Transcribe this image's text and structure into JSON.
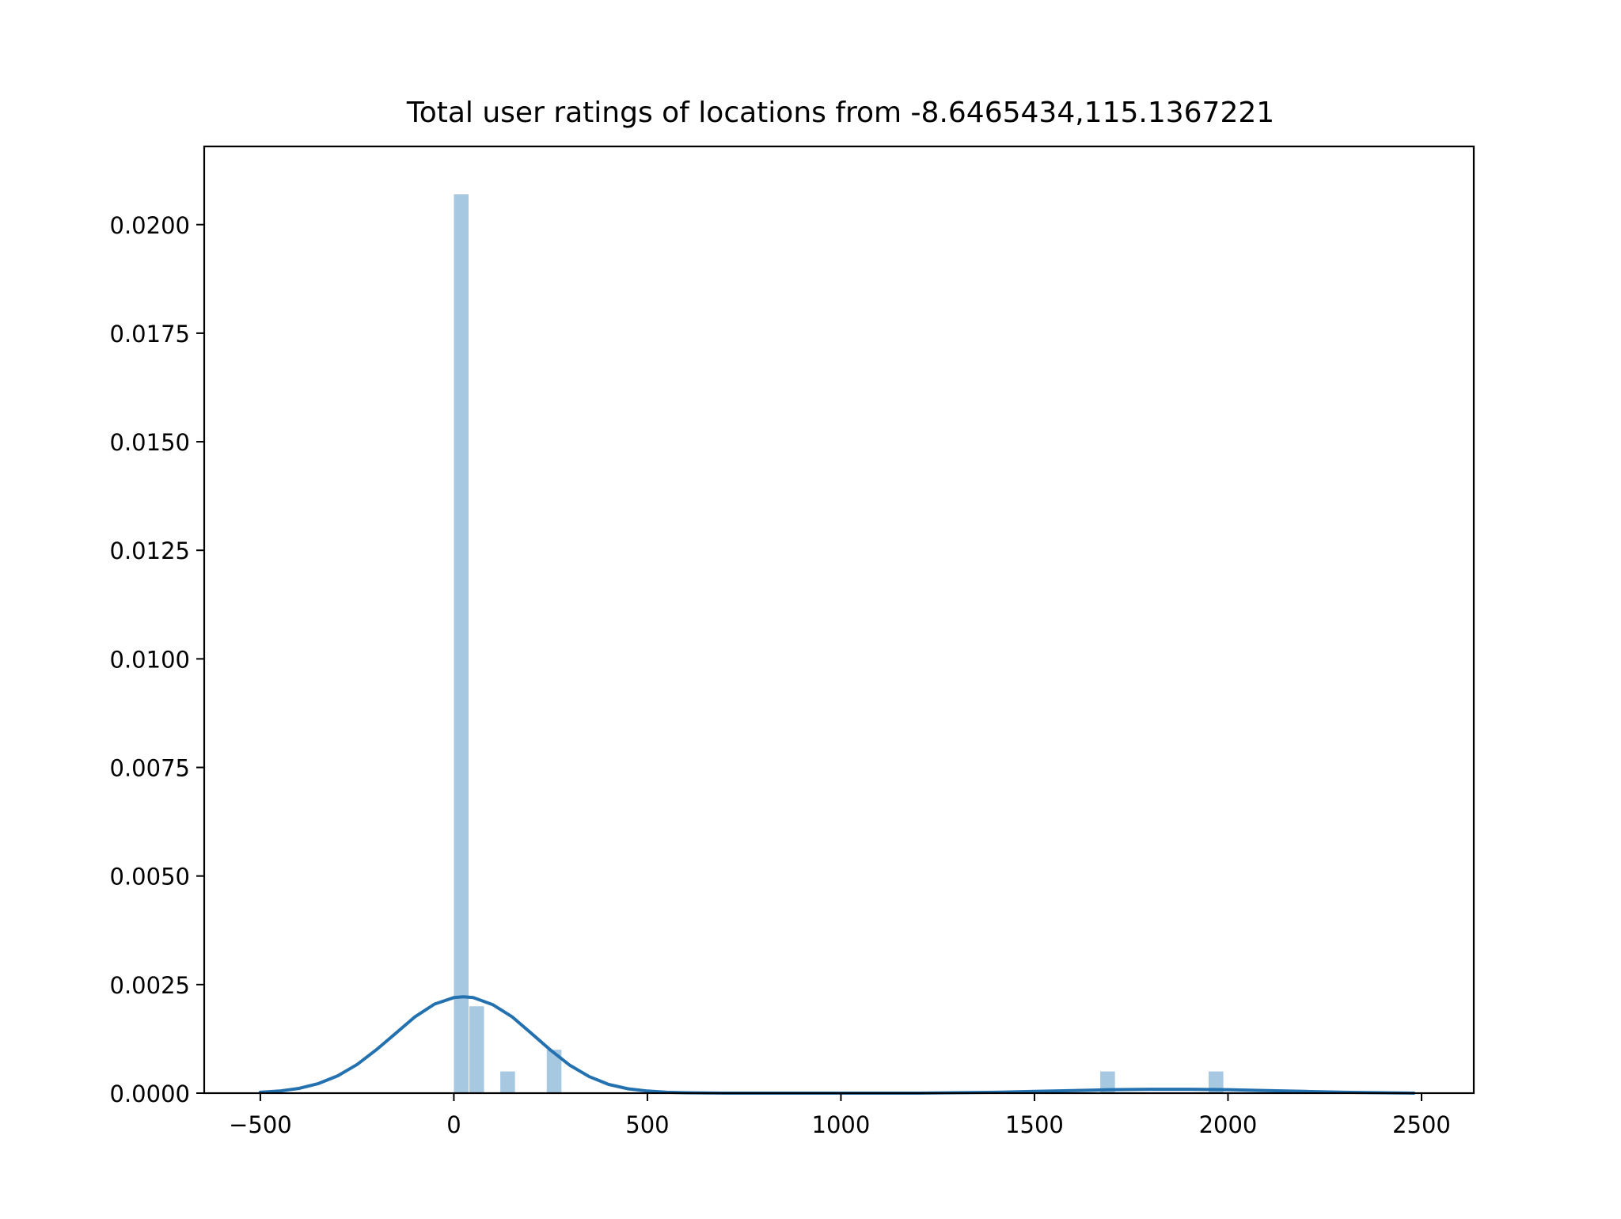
{
  "chart_data": {
    "type": "histogram",
    "title": "Total user ratings of locations from -8.6465434,115.1367221",
    "xlabel": "",
    "ylabel": "",
    "xlim": [
      -645,
      2635
    ],
    "ylim": [
      0,
      0.0218
    ],
    "x_ticks": [
      -500,
      0,
      500,
      1000,
      1500,
      2000,
      2500
    ],
    "x_tick_labels": [
      "−500",
      "0",
      "500",
      "1000",
      "1500",
      "2000",
      "2500"
    ],
    "y_ticks": [
      0,
      0.0025,
      0.005,
      0.0075,
      0.01,
      0.0125,
      0.015,
      0.0175,
      0.02
    ],
    "y_tick_labels": [
      "0.0000",
      "0.0025",
      "0.0050",
      "0.0075",
      "0.0100",
      "0.0125",
      "0.0150",
      "0.0175",
      "0.0200"
    ],
    "bars": [
      {
        "x0": 0,
        "x1": 40,
        "density": 0.0207
      },
      {
        "x0": 40,
        "x1": 80,
        "density": 0.002
      },
      {
        "x0": 120,
        "x1": 160,
        "density": 0.0005
      },
      {
        "x0": 240,
        "x1": 280,
        "density": 0.001
      },
      {
        "x0": 1670,
        "x1": 1710,
        "density": 0.0005
      },
      {
        "x0": 1950,
        "x1": 1990,
        "density": 0.0005
      }
    ],
    "kde": {
      "x": [
        -500,
        -450,
        -400,
        -350,
        -300,
        -250,
        -200,
        -150,
        -100,
        -50,
        0,
        25,
        50,
        100,
        150,
        200,
        250,
        300,
        350,
        400,
        450,
        500,
        550,
        600,
        700,
        800,
        1000,
        1200,
        1400,
        1500,
        1600,
        1700,
        1800,
        1900,
        2000,
        2100,
        2200,
        2300,
        2400,
        2480
      ],
      "y": [
        2e-05,
        5e-05,
        0.00011,
        0.00022,
        0.0004,
        0.00066,
        0.001,
        0.00138,
        0.00176,
        0.00205,
        0.0022,
        0.00222,
        0.0022,
        0.00204,
        0.00176,
        0.00138,
        0.00099,
        0.00064,
        0.00038,
        0.0002,
        0.0001,
        5e-05,
        2e-05,
        1e-05,
        0.0,
        0.0,
        0.0,
        0.0,
        2e-05,
        4e-05,
        6e-05,
        8e-05,
        9e-05,
        9e-05,
        8e-05,
        6e-05,
        4e-05,
        2e-05,
        1e-05,
        0.0
      ]
    },
    "bar_color": "#a6c8e0",
    "line_color": "#2471b0",
    "grid": false,
    "legend": "none"
  }
}
